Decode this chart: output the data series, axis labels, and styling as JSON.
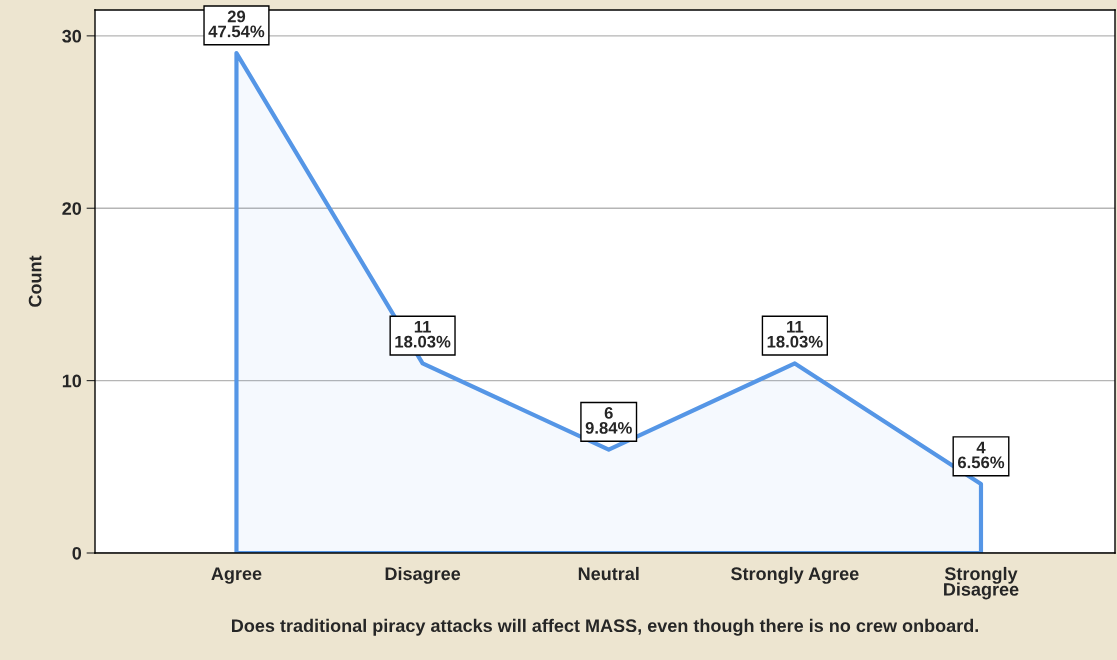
{
  "chart_data": {
    "type": "area",
    "xlabel": "Does traditional piracy attacks will affect MASS, even though there is no crew onboard.",
    "ylabel": "Count",
    "categories": [
      "Agree",
      "Disagree",
      "Neutral",
      "Strongly Agree",
      "Strongly\nDisagree"
    ],
    "values": [
      29,
      11,
      6,
      11,
      4
    ],
    "color": "#5596e6",
    "value_labels": [
      "29\n47.54%",
      "11\n18.03%",
      "6\n9.84%",
      "11\n18.03%",
      "4\n6.56%"
    ],
    "ylim": [
      0,
      31.5
    ],
    "yticks": [
      0,
      10,
      20,
      30
    ],
    "grid": "y",
    "legend": false
  }
}
